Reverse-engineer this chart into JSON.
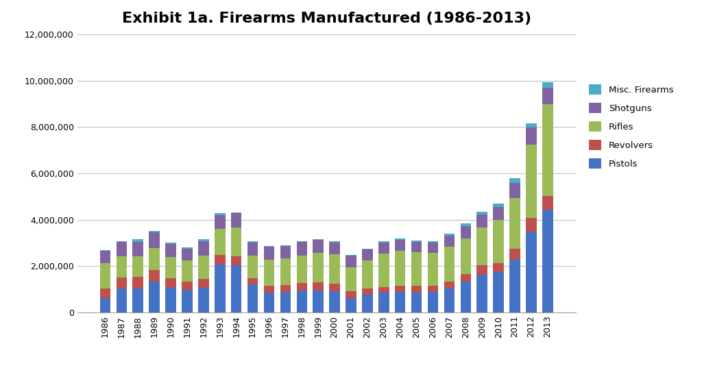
{
  "title": "Exhibit 1a. Firearms Manufactured (1986-2013)",
  "years": [
    1986,
    1987,
    1988,
    1989,
    1990,
    1991,
    1992,
    1993,
    1994,
    1995,
    1996,
    1997,
    1998,
    1999,
    2000,
    2001,
    2002,
    2003,
    2004,
    2005,
    2006,
    2007,
    2008,
    2009,
    2010,
    2011,
    2012,
    2013
  ],
  "pistols": [
    628691,
    1019022,
    1017720,
    1316001,
    1055368,
    958521,
    1069011,
    2063678,
    2027525,
    1224406,
    867813,
    897780,
    944780,
    946716,
    904645,
    629013,
    769765,
    841225,
    891854,
    865736,
    875628,
    1025703,
    1315551,
    1627294,
    1733382,
    2278636,
    3489143,
    4438573
  ],
  "revolvers": [
    394165,
    473038,
    520936,
    512035,
    414826,
    378041,
    362844,
    404706,
    393424,
    253201,
    286851,
    292090,
    322866,
    354765,
    321905,
    289241,
    258997,
    255820,
    267009,
    286968,
    281689,
    307129,
    351950,
    421099,
    403548,
    477937,
    581082,
    582065
  ],
  "rifles": [
    1105838,
    916845,
    893003,
    952024,
    920703,
    904243,
    1024499,
    1138905,
    1231024,
    959177,
    1119762,
    1139059,
    1187899,
    1279483,
    1273386,
    1034051,
    1207931,
    1447029,
    1485947,
    1434985,
    1399428,
    1503754,
    1527415,
    1605977,
    1840310,
    2179021,
    3168345,
    3979570
  ],
  "shotguns": [
    525069,
    624316,
    622122,
    664132,
    557980,
    506851,
    609312,
    591166,
    625843,
    583887,
    548785,
    524726,
    572723,
    549920,
    516168,
    501800,
    467920,
    476040,
    500988,
    465000,
    459997,
    475800,
    539154,
    564978,
    563773,
    635988,
    740760,
    695176
  ],
  "misc": [
    45000,
    53000,
    95000,
    57000,
    54000,
    58000,
    108000,
    82000,
    46000,
    55000,
    44000,
    35000,
    42000,
    43000,
    45000,
    41000,
    46000,
    53000,
    58000,
    51000,
    55000,
    75000,
    113000,
    131000,
    145000,
    225000,
    190000,
    225000
  ],
  "colors": {
    "pistols": "#4472C4",
    "revolvers": "#C0504D",
    "rifles": "#9BBB59",
    "shotguns": "#8064A2",
    "misc": "#4BACC6"
  },
  "ylim": [
    0,
    12000000
  ],
  "yticks": [
    0,
    2000000,
    4000000,
    6000000,
    8000000,
    10000000,
    12000000
  ],
  "bg_color": "#FFFFFF",
  "plot_bg": "#FFFFFF",
  "grid_color": "#C0C0C0"
}
